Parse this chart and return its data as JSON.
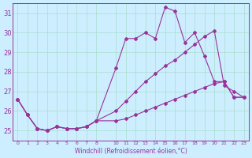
{
  "xlabel": "Windchill (Refroidissement éolien,°C)",
  "bg_color": "#cceeff",
  "grid_color": "#aaddcc",
  "line_color": "#993399",
  "xlim": [
    -0.5,
    23.5
  ],
  "ylim": [
    24.5,
    31.5
  ],
  "yticks": [
    25,
    26,
    27,
    28,
    29,
    30,
    31
  ],
  "xtick_positions": [
    0,
    1,
    2,
    3,
    4,
    5,
    6,
    7,
    8,
    10,
    11,
    12,
    13,
    14,
    15,
    16,
    17,
    18,
    19,
    20,
    21,
    22,
    23
  ],
  "xtick_labels": [
    "0",
    "1",
    "2",
    "3",
    "4",
    "5",
    "6",
    "7",
    "8",
    "10",
    "11",
    "12",
    "13",
    "14",
    "15",
    "16",
    "17",
    "18",
    "19",
    "20",
    "21",
    "22",
    "23"
  ],
  "series": [
    {
      "x": [
        0,
        1,
        2,
        3,
        4,
        5,
        6,
        7,
        8,
        10,
        11,
        12,
        13,
        14,
        15,
        16,
        17,
        18,
        19,
        20,
        21,
        22,
        23
      ],
      "y": [
        26.6,
        25.8,
        25.1,
        25.0,
        25.2,
        25.1,
        25.1,
        25.2,
        25.5,
        28.2,
        29.7,
        29.7,
        30.0,
        29.7,
        31.3,
        31.1,
        29.5,
        30.0,
        28.8,
        27.5,
        27.5,
        26.7,
        26.7
      ]
    },
    {
      "x": [
        0,
        1,
        2,
        3,
        4,
        5,
        6,
        7,
        8,
        10,
        11,
        12,
        13,
        14,
        15,
        16,
        17,
        18,
        19,
        20,
        21,
        22,
        23
      ],
      "y": [
        26.6,
        25.8,
        25.1,
        25.0,
        25.2,
        25.1,
        25.1,
        25.2,
        25.5,
        26.0,
        26.5,
        27.0,
        27.5,
        27.9,
        28.3,
        28.6,
        29.0,
        29.4,
        29.8,
        30.1,
        27.3,
        27.0,
        26.7
      ]
    },
    {
      "x": [
        0,
        1,
        2,
        3,
        4,
        5,
        6,
        7,
        8,
        10,
        11,
        12,
        13,
        14,
        15,
        16,
        17,
        18,
        19,
        20,
        21,
        22,
        23
      ],
      "y": [
        26.6,
        25.8,
        25.1,
        25.0,
        25.2,
        25.1,
        25.1,
        25.2,
        25.5,
        25.5,
        25.6,
        25.8,
        26.0,
        26.2,
        26.4,
        26.6,
        26.8,
        27.0,
        27.2,
        27.4,
        27.5,
        26.7,
        26.7
      ]
    }
  ]
}
